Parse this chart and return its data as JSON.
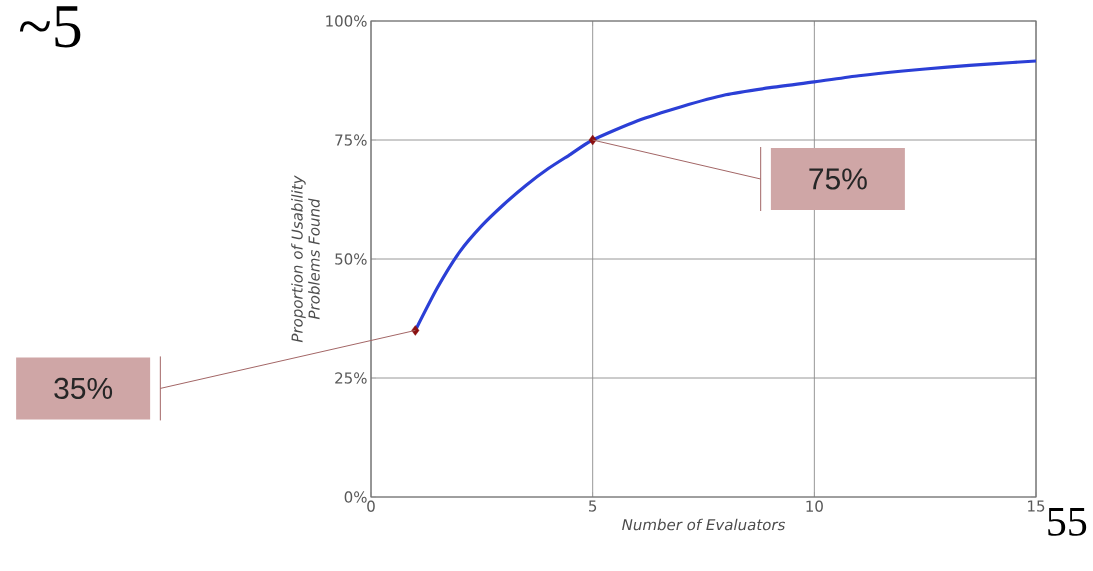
{
  "chart_data": {
    "type": "line",
    "title": "~5",
    "xlabel": "Number of Evaluators",
    "ylabel": "Proportion of Usability Problems Found",
    "series": [
      {
        "color": "#2b3fd6",
        "marker": "none",
        "line_style": "solid",
        "x": [
          1,
          1.5,
          2,
          2.5,
          3,
          3.5,
          4,
          4.5,
          5,
          6,
          7,
          8,
          9,
          10,
          11,
          12,
          13,
          14,
          15
        ],
        "values": [
          35,
          44,
          51.5,
          57,
          61.5,
          65.5,
          69,
          72,
          75,
          79,
          82,
          84.5,
          86,
          87.2,
          88.5,
          89.5,
          90.3,
          91,
          91.6
        ]
      },
      {
        "type": "scatter",
        "color": "#8b1010",
        "marker": "diamond",
        "x": [
          1,
          5
        ],
        "values": [
          35,
          75
        ]
      }
    ],
    "xlim": [
      0,
      15
    ],
    "ylim": [
      0,
      100
    ],
    "xticks": [
      0,
      5,
      10,
      15
    ],
    "yticks": [
      {
        "value": 0,
        "label": "0%"
      },
      {
        "value": 25,
        "label": "25%"
      },
      {
        "value": 50,
        "label": "50%"
      },
      {
        "value": 75,
        "label": "75%"
      },
      {
        "value": 100,
        "label": "100%"
      }
    ],
    "grid": true,
    "annotations": [
      "35%",
      "75%",
      "55"
    ]
  }
}
